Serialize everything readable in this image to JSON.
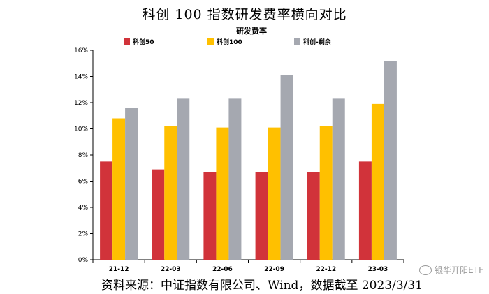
{
  "page_title": "科创 100 指数研发费率横向对比",
  "source_text": "资料来源：中证指数有限公司、Wind，数据截至 2023/3/31",
  "watermark_text": "银华开阳ETF",
  "chart_data": {
    "type": "bar",
    "title": "研发费率",
    "categories": [
      "21-12",
      "22-03",
      "22-06",
      "22-09",
      "22-12",
      "23-03"
    ],
    "series": [
      {
        "name": "科创50",
        "color": "#d1333a",
        "values": [
          7.5,
          6.9,
          6.7,
          6.7,
          6.7,
          7.5
        ]
      },
      {
        "name": "科创100",
        "color": "#ffc000",
        "values": [
          10.8,
          10.2,
          10.1,
          10.1,
          10.2,
          11.9
        ]
      },
      {
        "name": "科创-剩余",
        "color": "#a5a8b0",
        "values": [
          11.6,
          12.3,
          12.3,
          14.1,
          12.3,
          15.2
        ]
      }
    ],
    "ylim": [
      0,
      16
    ],
    "yticks": [
      "0%",
      "2%",
      "4%",
      "6%",
      "8%",
      "10%",
      "12%",
      "14%",
      "16%"
    ],
    "legend_position": "top",
    "grid": false
  }
}
